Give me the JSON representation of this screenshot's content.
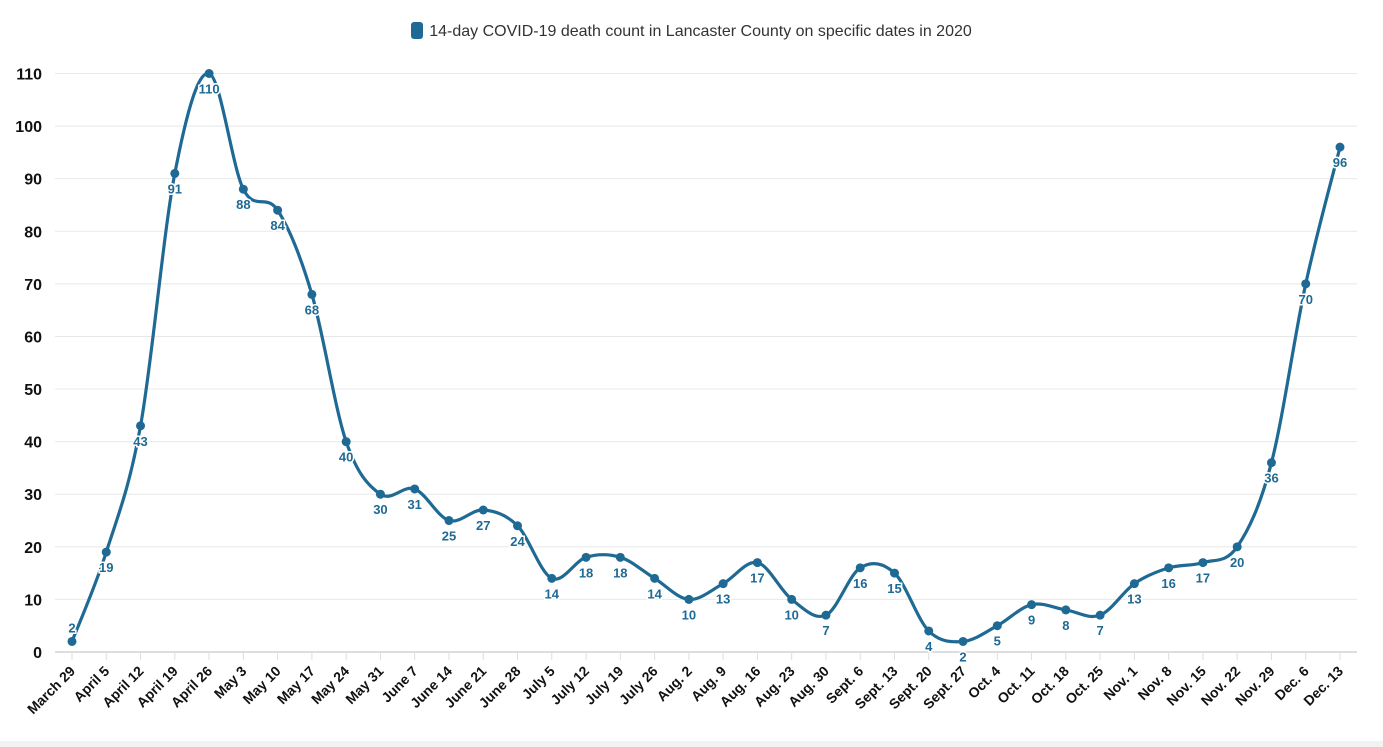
{
  "chart_data": {
    "type": "line",
    "title": "",
    "xlabel": "",
    "ylabel": "",
    "ylim": [
      0,
      110
    ],
    "yticks": [
      0,
      10,
      20,
      30,
      40,
      50,
      60,
      70,
      80,
      90,
      100,
      110
    ],
    "grid": true,
    "legend_position": "top-center",
    "color": "#1f6a94",
    "categories": [
      "March 29",
      "April 5",
      "April 12",
      "April 19",
      "April 26",
      "May 3",
      "May 10",
      "May 17",
      "May 24",
      "May 31",
      "June 7",
      "June 14",
      "June 21",
      "June 28",
      "July 5",
      "July 12",
      "July 19",
      "July 26",
      "Aug. 2",
      "Aug. 9",
      "Aug. 16",
      "Aug. 23",
      "Aug. 30",
      "Sept. 6",
      "Sept. 13",
      "Sept. 20",
      "Sept. 27",
      "Oct. 4",
      "Oct. 11",
      "Oct. 18",
      "Oct. 25",
      "Nov. 1",
      "Nov. 8",
      "Nov. 15",
      "Nov. 22",
      "Nov. 29",
      "Dec. 6",
      "Dec. 13"
    ],
    "series": [
      {
        "name": "14-day COVID-19 death count in Lancaster County on specific dates in 2020",
        "values": [
          2,
          19,
          43,
          91,
          110,
          88,
          84,
          68,
          40,
          30,
          31,
          25,
          27,
          24,
          14,
          18,
          18,
          14,
          10,
          13,
          17,
          10,
          7,
          16,
          15,
          4,
          2,
          5,
          9,
          8,
          7,
          13,
          16,
          17,
          20,
          36,
          70,
          96
        ]
      }
    ]
  }
}
